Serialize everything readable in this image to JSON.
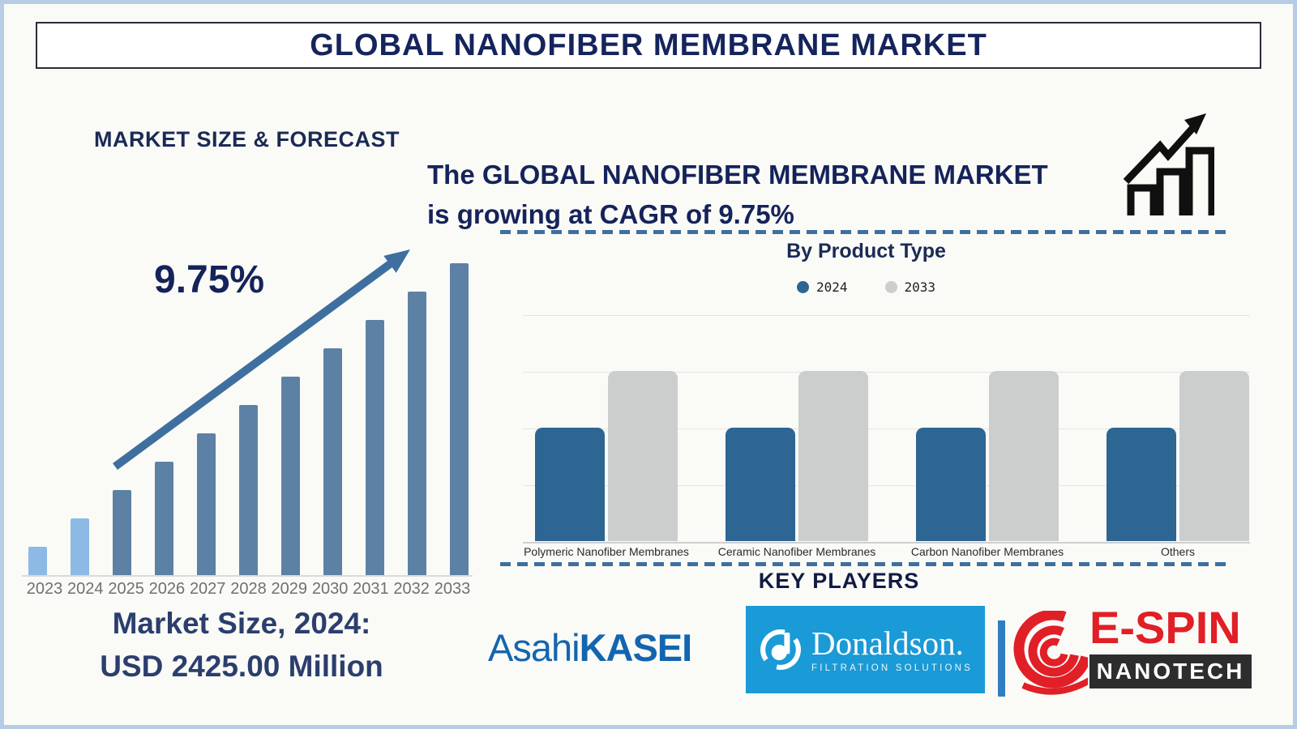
{
  "header": {
    "title": "GLOBAL NANOFIBER MEMBRANE MARKET"
  },
  "left": {
    "section_title": "MARKET SIZE & FORECAST",
    "cagr_annotation": "9.75%",
    "market_size_line1": "Market Size, 2024:",
    "market_size_line2": "USD 2425.00 Million"
  },
  "right": {
    "headline_line1": "The GLOBAL NANOFIBER MEMBRANE MARKET",
    "headline_line2": "is growing at CAGR of 9.75%",
    "growth_icon": "bar-chart-rising-arrow-icon",
    "product_chart_title": "By Product Type",
    "legend": [
      {
        "label": "2024",
        "color": "#2d6593"
      },
      {
        "label": "2033",
        "color": "#cbcecd"
      }
    ],
    "key_players_title": "KEY PLAYERS"
  },
  "logos": {
    "asahi_kasei": {
      "text_regular": "Asahi",
      "text_bold": "KASEI",
      "color": "#1465af"
    },
    "donaldson": {
      "name": "Donaldson.",
      "tagline": "FILTRATION SOLUTIONS",
      "background": "#1a9ad6"
    },
    "espin": {
      "name": "E-SPIN",
      "sub": "NANOTECH",
      "red": "#e11f26",
      "box_color": "#2d2d2d"
    }
  },
  "colors": {
    "navy_text": "#15235a",
    "forecast_bar": "#5d81a5",
    "forecast_bar_highlight": "#8cbae4",
    "trend_arrow": "#3e6f9f",
    "dashed_divider": "#3e6f9f",
    "frame_border": "#b7cce5",
    "year_label_gray": "#6f7072"
  },
  "chart_data": [
    {
      "type": "bar",
      "title": "MARKET SIZE & FORECAST",
      "categories": [
        "2023",
        "2024",
        "2025",
        "2026",
        "2027",
        "2028",
        "2029",
        "2030",
        "2031",
        "2032",
        "2033"
      ],
      "values": [
        1,
        2,
        3,
        4,
        5,
        6,
        7,
        8,
        9,
        10,
        11
      ],
      "values_unit": "relative stylized bar height (equal increments); only labeled value: 2024 = USD 2425.00 Million; CAGR 9.75%",
      "annotation": "9.75%",
      "highlight_years": [
        "2023",
        "2024"
      ],
      "highlight_color": "#8cbae4",
      "bar_color": "#5d81a5",
      "grid": false,
      "xlabel": "",
      "ylabel": ""
    },
    {
      "type": "bar",
      "title": "By Product Type",
      "categories": [
        "Polymeric Nanofiber Membranes",
        "Ceramic Nanofiber Membranes",
        "Carbon Nanofiber Membranes",
        "Others"
      ],
      "series": [
        {
          "name": "2024",
          "color": "#2d6593",
          "values": [
            2,
            2,
            2,
            2
          ]
        },
        {
          "name": "2033",
          "color": "#cbcecd",
          "values": [
            3,
            3,
            3,
            3
          ]
        }
      ],
      "ylim": [
        0,
        4
      ],
      "grid": true,
      "legend_position": "top",
      "xlabel": "",
      "ylabel": ""
    }
  ]
}
